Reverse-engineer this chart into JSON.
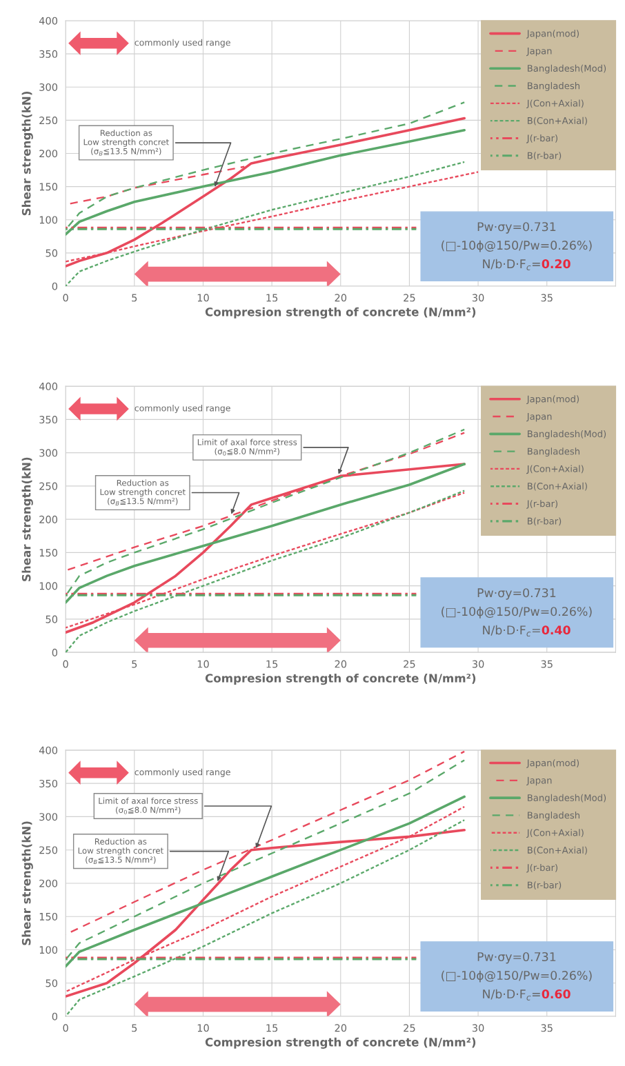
{
  "chart_data": [
    {
      "type": "line",
      "xlabel": "Compresion strength of concrete (N/mm²)",
      "ylabel": "Shear strength(kN)",
      "xlim": [
        0,
        40
      ],
      "xticks": [
        0,
        5,
        10,
        15,
        20,
        25,
        30,
        35
      ],
      "ylim": [
        0,
        400
      ],
      "yticks": [
        0,
        50,
        100,
        150,
        200,
        250,
        300,
        350,
        400
      ],
      "grid": true,
      "legend": "top right",
      "marker": "none",
      "series": [
        {
          "name": "Japan(mod)",
          "color": "#e8495c",
          "line_style": "solid",
          "x": [
            0,
            1,
            3,
            5,
            7,
            10,
            12,
            13.5,
            15,
            20,
            25,
            29
          ],
          "values": [
            30,
            38,
            50,
            70,
            95,
            135,
            162,
            185,
            192,
            213,
            235,
            253
          ]
        },
        {
          "name": "Japan",
          "color": "#e8495c",
          "line_style": "dashed",
          "x": [
            0,
            3,
            5,
            8,
            10,
            13
          ],
          "values": [
            123,
            135,
            148,
            160,
            168,
            180
          ]
        },
        {
          "name": "Bangladesh(Mod)",
          "color": "#5aa86a",
          "line_style": "solid",
          "x": [
            0,
            1,
            3,
            5,
            10,
            15,
            20,
            25,
            29
          ],
          "values": [
            78,
            97,
            113,
            127,
            150,
            172,
            197,
            218,
            235
          ]
        },
        {
          "name": "Bangladesh",
          "color": "#5aa86a",
          "line_style": "dashed",
          "x": [
            0,
            1,
            3,
            5,
            10,
            15,
            20,
            25,
            29
          ],
          "values": [
            85,
            110,
            135,
            148,
            175,
            200,
            222,
            245,
            277
          ]
        },
        {
          "name": "J(Con+Axial)",
          "color": "#e8495c",
          "line_style": "dotted",
          "x": [
            0,
            3,
            5,
            10,
            15,
            20,
            25,
            30
          ],
          "values": [
            37,
            50,
            60,
            83,
            105,
            128,
            150,
            172
          ]
        },
        {
          "name": "B(Con+Axial)",
          "color": "#5aa86a",
          "line_style": "dotted",
          "x": [
            0,
            1,
            3,
            5,
            10,
            15,
            20,
            25,
            29
          ],
          "values": [
            0,
            22,
            38,
            52,
            85,
            115,
            140,
            165,
            187
          ]
        },
        {
          "name": "J(r-bar)",
          "color": "#e8495c",
          "line_style": "dashdot",
          "x": [
            0,
            25.5
          ],
          "values": [
            88,
            88
          ]
        },
        {
          "name": "B(r-bar)",
          "color": "#5aa86a",
          "line_style": "dashdot",
          "x": [
            0,
            25.5
          ],
          "values": [
            86,
            86
          ]
        }
      ],
      "annotations": [
        "commonly used range",
        {
          "text": "Reduction as\nLow strength concret\n(σ$_{B}$≦13.5 N/mm²)",
          "x": 10.8,
          "y": 147
        },
        "Pw·σy=0.731",
        "(□-10ϕ@150/Pw=0.26%)",
        "N/b·D·F$_{c}$=",
        "0.20"
      ]
    },
    {
      "type": "line",
      "xlabel": "Compresion strength of concrete (N/mm²)",
      "ylabel": "Shear strength(kN)",
      "xlim": [
        0,
        40
      ],
      "xticks": [
        0,
        5,
        10,
        15,
        20,
        25,
        30,
        35
      ],
      "ylim": [
        0,
        400
      ],
      "yticks": [
        0,
        50,
        100,
        150,
        200,
        250,
        300,
        350,
        400
      ],
      "grid": true,
      "legend": "top right",
      "marker": "none",
      "series": [
        {
          "name": "Japan(mod)",
          "color": "#e8495c",
          "line_style": "solid",
          "x": [
            0,
            2,
            5,
            8,
            10,
            12,
            13.5,
            15,
            20,
            25,
            29
          ],
          "values": [
            30,
            45,
            75,
            115,
            150,
            190,
            222,
            232,
            265,
            275,
            283
          ]
        },
        {
          "name": "Japan",
          "color": "#e8495c",
          "line_style": "dashed",
          "x": [
            0,
            5,
            10,
            15,
            20,
            25,
            29
          ],
          "values": [
            123,
            158,
            190,
            228,
            265,
            298,
            330
          ]
        },
        {
          "name": "Bangladesh(Mod)",
          "color": "#5aa86a",
          "line_style": "solid",
          "x": [
            0,
            1,
            3,
            5,
            10,
            15,
            20,
            25,
            29
          ],
          "values": [
            75,
            97,
            115,
            130,
            160,
            190,
            222,
            252,
            283
          ]
        },
        {
          "name": "Bangladesh",
          "color": "#5aa86a",
          "line_style": "dashed",
          "x": [
            0,
            1,
            3,
            5,
            10,
            15,
            20,
            25,
            29
          ],
          "values": [
            85,
            115,
            135,
            150,
            185,
            225,
            263,
            300,
            335
          ]
        },
        {
          "name": "J(Con+Axial)",
          "color": "#e8495c",
          "line_style": "dotted",
          "x": [
            0,
            5,
            10,
            15,
            20,
            25,
            29
          ],
          "values": [
            37,
            72,
            110,
            145,
            178,
            210,
            240
          ]
        },
        {
          "name": "B(Con+Axial)",
          "color": "#5aa86a",
          "line_style": "dotted",
          "x": [
            0,
            1,
            3,
            5,
            10,
            15,
            20,
            25,
            29
          ],
          "values": [
            0,
            25,
            45,
            62,
            100,
            138,
            172,
            210,
            243
          ]
        },
        {
          "name": "J(r-bar)",
          "color": "#e8495c",
          "line_style": "dashdot",
          "x": [
            0,
            25.5
          ],
          "values": [
            88,
            88
          ]
        },
        {
          "name": "B(r-bar)",
          "color": "#5aa86a",
          "line_style": "dashdot",
          "x": [
            0,
            25.5
          ],
          "values": [
            86,
            86
          ]
        }
      ],
      "annotations": [
        "commonly used range",
        {
          "text": "Reduction as\nLow strength concret\n(σ$_{B}$≦13.5 N/mm²)",
          "x": 12,
          "y": 205
        },
        {
          "text": "Limit of axal force stress\n(σ$_{0}$≦8.0 N/mm²)",
          "x": 19.8,
          "y": 265
        },
        "Pw·σy=0.731",
        "(□-10ϕ@150/Pw=0.26%)",
        "N/b·D·F$_{c}$=",
        "0.40"
      ]
    },
    {
      "type": "line",
      "xlabel": "Compresion strength of concrete (N/mm²)",
      "ylabel": "Shear strength(kN)",
      "xlim": [
        0,
        40
      ],
      "xticks": [
        0,
        5,
        10,
        15,
        20,
        25,
        30,
        35
      ],
      "ylim": [
        0,
        400
      ],
      "yticks": [
        0,
        50,
        100,
        150,
        200,
        250,
        300,
        350,
        400
      ],
      "grid": true,
      "legend": "top right",
      "marker": "none",
      "series": [
        {
          "name": "Japan(mod)",
          "color": "#e8495c",
          "line_style": "solid",
          "x": [
            0,
            3,
            5,
            8,
            10,
            12,
            13.5,
            15,
            20,
            25,
            29
          ],
          "values": [
            30,
            50,
            80,
            130,
            175,
            220,
            250,
            253,
            262,
            270,
            280
          ]
        },
        {
          "name": "Japan",
          "color": "#e8495c",
          "line_style": "dashed",
          "x": [
            0,
            5,
            10,
            15,
            20,
            25,
            29
          ],
          "values": [
            123,
            172,
            220,
            265,
            310,
            355,
            398
          ]
        },
        {
          "name": "Bangladesh(Mod)",
          "color": "#5aa86a",
          "line_style": "solid",
          "x": [
            0,
            1,
            5,
            10,
            15,
            20,
            25,
            29
          ],
          "values": [
            75,
            97,
            130,
            170,
            210,
            250,
            290,
            330
          ]
        },
        {
          "name": "Bangladesh",
          "color": "#5aa86a",
          "line_style": "dashed",
          "x": [
            0,
            1,
            5,
            10,
            15,
            20,
            25,
            29
          ],
          "values": [
            85,
            110,
            150,
            200,
            245,
            290,
            335,
            385
          ]
        },
        {
          "name": "J(Con+Axial)",
          "color": "#e8495c",
          "line_style": "dotted",
          "x": [
            0,
            5,
            10,
            15,
            20,
            25,
            29
          ],
          "values": [
            37,
            85,
            130,
            180,
            225,
            270,
            315
          ]
        },
        {
          "name": "B(Con+Axial)",
          "color": "#5aa86a",
          "line_style": "dotted",
          "x": [
            0,
            1,
            5,
            10,
            15,
            20,
            25,
            29
          ],
          "values": [
            0,
            25,
            60,
            105,
            155,
            200,
            250,
            295
          ]
        },
        {
          "name": "J(r-bar)",
          "color": "#e8495c",
          "line_style": "dashdot",
          "x": [
            0,
            25.5
          ],
          "values": [
            88,
            88
          ]
        },
        {
          "name": "B(r-bar)",
          "color": "#5aa86a",
          "line_style": "dashdot",
          "x": [
            0,
            25.5
          ],
          "values": [
            86,
            86
          ]
        }
      ],
      "annotations": [
        "commonly used range",
        {
          "text": "Reduction as\nLow strength concret\n(σ$_{B}$≦13.5 N/mm²)",
          "x": 11,
          "y": 200
        },
        {
          "text": "Limit of axal force stress\n(σ$_{0}$≦8.0 N/mm²)",
          "x": 13.8,
          "y": 250
        },
        "Pw·σy=0.731",
        "(□-10ϕ@150/Pw=0.26%)",
        "N/b·D·F$_{c}$=",
        "0.60"
      ]
    }
  ]
}
